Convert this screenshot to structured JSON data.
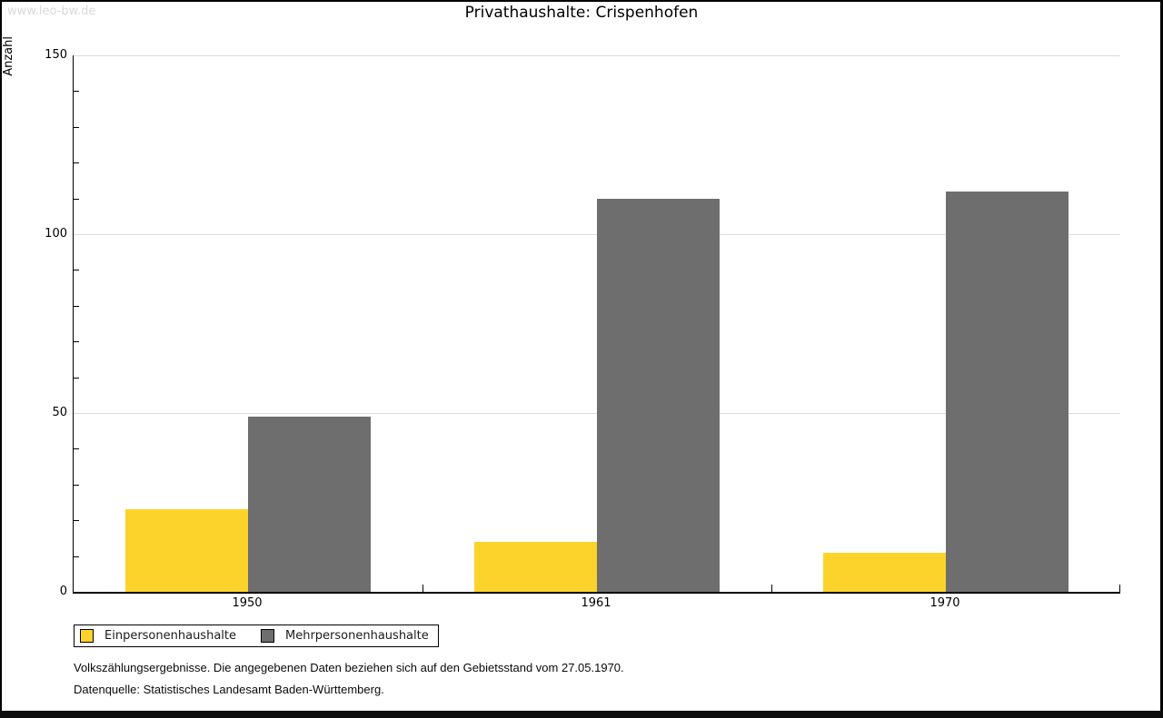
{
  "watermark": "www.leo-bw.de",
  "title": "Privathaushalte: Crispenhofen",
  "chart_data": {
    "type": "bar",
    "title": "Privathaushalte: Crispenhofen",
    "categories": [
      "1950",
      "1961",
      "1970"
    ],
    "series": [
      {
        "name": "Einpersonenhaushalte",
        "color": "#fbd32b",
        "values": [
          23,
          14,
          11
        ]
      },
      {
        "name": "Mehrpersonenhaushalte",
        "color": "#6e6e6e",
        "values": [
          49,
          110,
          112
        ]
      }
    ],
    "xlabel": "",
    "ylabel": "Anzahl",
    "ylim": [
      0,
      150
    ],
    "y_major_ticks": [
      0,
      50,
      100,
      150
    ],
    "y_minor_step": 10,
    "grid": "horizontal-at-major-ticks",
    "legend_position": "bottom-left"
  },
  "footnotes": [
    "Volkszählungsergebnisse. Die angegebenen Daten beziehen sich auf den Gebietsstand vom 27.05.1970.",
    "Datenquelle: Statistisches Landesamt Baden-Württemberg."
  ],
  "colors": {
    "series_1": "#fbd32b",
    "series_2": "#6e6e6e",
    "gridline": "#dcdcdc",
    "axis": "#000000",
    "watermark": "#d9d9d9",
    "background": "#ffffff",
    "frame": "#000000"
  }
}
